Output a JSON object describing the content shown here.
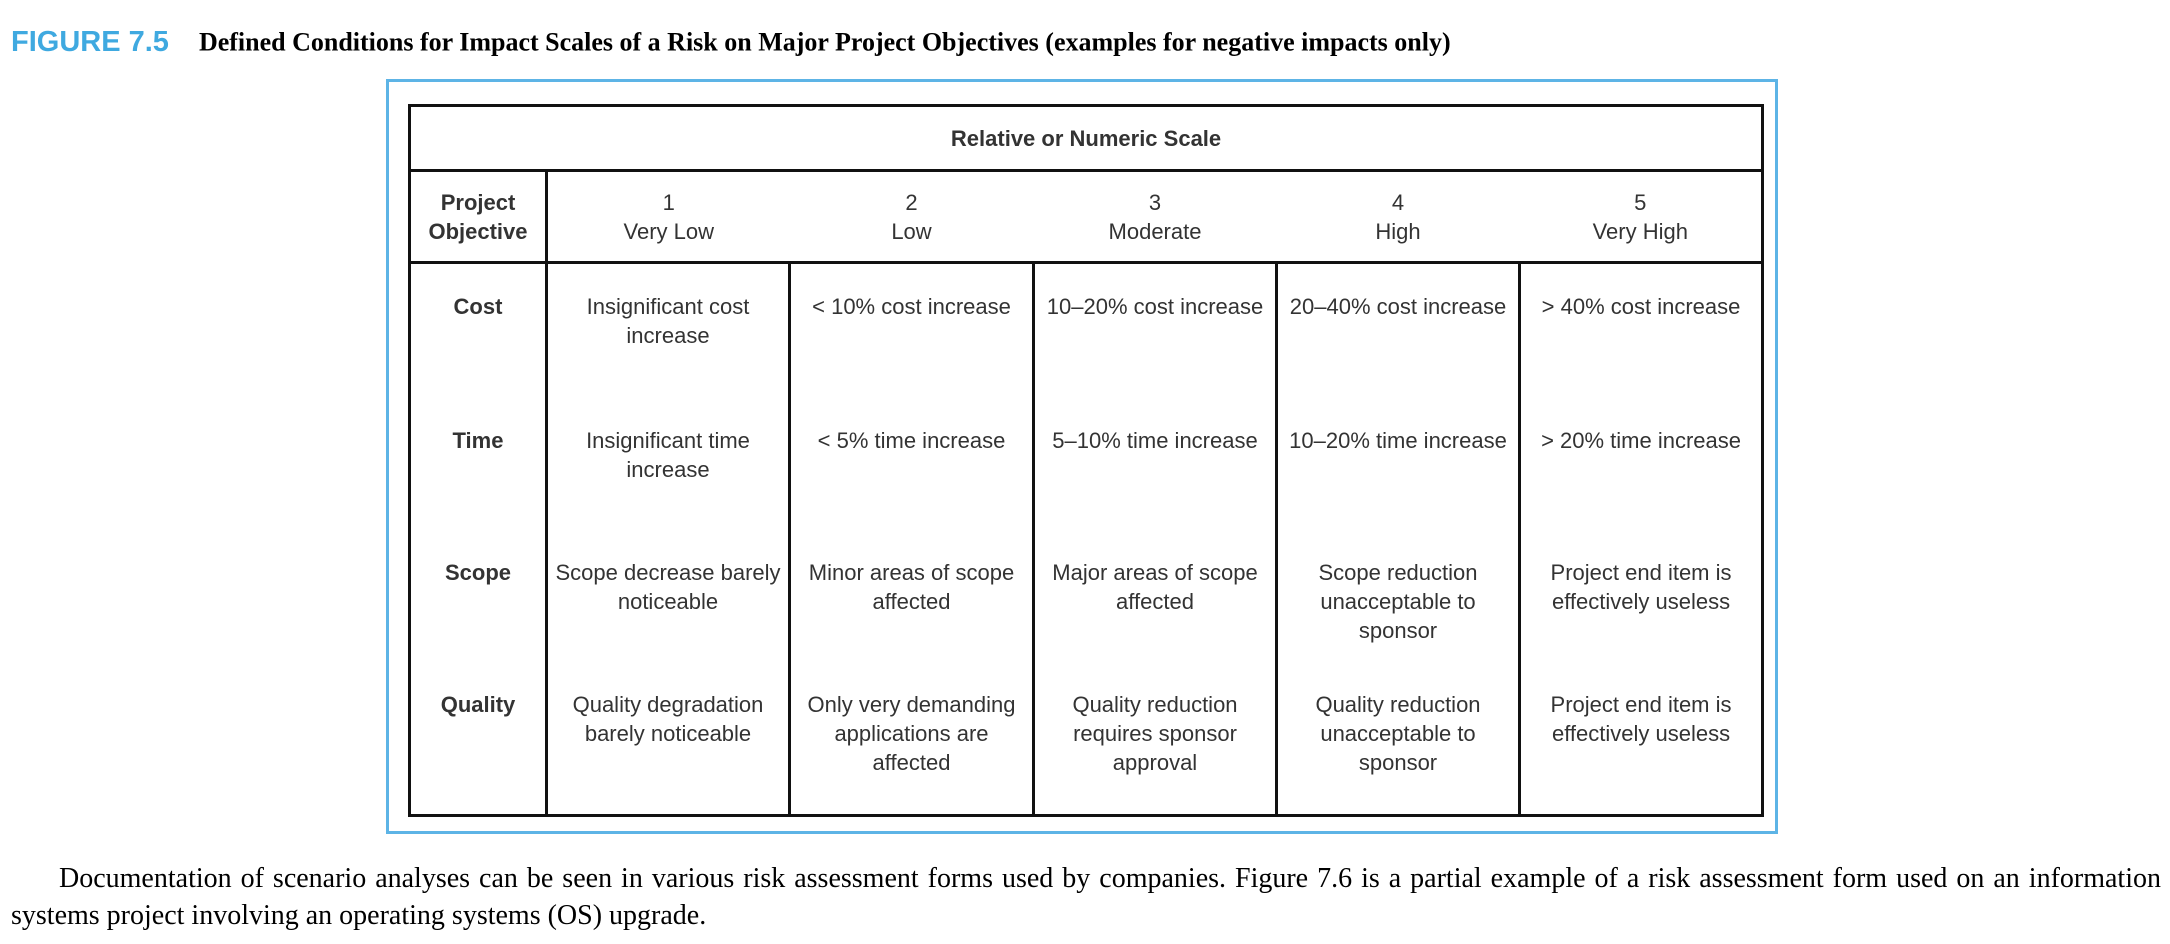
{
  "figure": {
    "label": "FIGURE 7.5",
    "title": "Defined Conditions for Impact Scales of a Risk on Major Project Objectives (examples for negative impacts only)"
  },
  "table": {
    "super_header": "Relative or Numeric Scale",
    "corner": "Project Objective",
    "header": [
      {
        "number": "1",
        "label": "Very Low"
      },
      {
        "number": "2",
        "label": "Low"
      },
      {
        "number": "3",
        "label": "Moderate"
      },
      {
        "number": "4",
        "label": "High"
      },
      {
        "number": "5",
        "label": "Very High"
      }
    ],
    "rows": [
      [
        "Cost",
        "Insignificant cost increase",
        "< 10% cost increase",
        "10–20% cost increase",
        "20–40% cost increase",
        "> 40% cost increase"
      ],
      [
        "Time",
        "Insignificant time increase",
        "< 5% time increase",
        "5–10% time increase",
        "10–20% time increase",
        "> 20% time increase"
      ],
      [
        "Scope",
        "Scope decrease barely noticeable",
        "Minor areas of scope affected",
        "Major areas of scope affected",
        "Scope reduction unacceptable to sponsor",
        "Project end item is effectively useless"
      ],
      [
        "Quality",
        "Quality degradation barely noticeable",
        "Only very demanding applications are affected",
        "Quality reduction requires sponsor approval",
        "Quality reduction unacceptable to sponsor",
        "Project end item is effectively useless"
      ]
    ]
  },
  "body_text": "Documentation of scenario analyses can be seen in various risk assessment forms used by companies. Figure 7.6 is a partial example of a risk assessment form used on an information systems project involving an operating systems (OS) upgrade."
}
